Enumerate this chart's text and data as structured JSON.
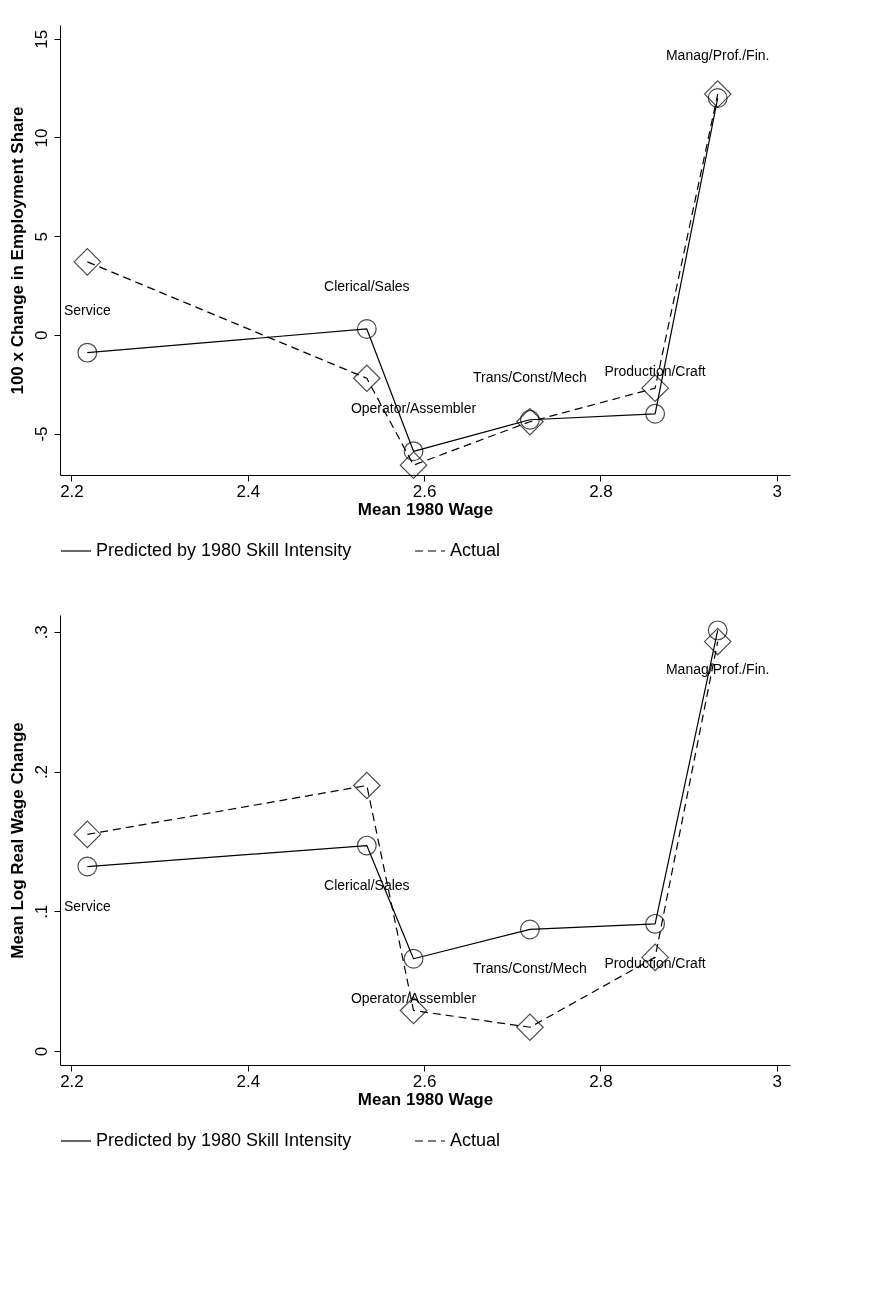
{
  "chart_data": [
    {
      "type": "line",
      "xlabel": "Mean 1980 Wage",
      "ylabel": "100 x Change in Employment Share",
      "x": [
        2.218,
        2.535,
        2.588,
        2.72,
        2.862,
        2.933
      ],
      "xlim": [
        2.187,
        3.015
      ],
      "xticks": [
        2.2,
        2.4,
        2.6,
        2.8,
        3
      ],
      "ylim": [
        -7.1,
        15.7
      ],
      "yticks": [
        -5,
        0,
        5,
        10,
        15
      ],
      "grid": false,
      "legend": "bottom",
      "series": [
        {
          "name": "Predicted by 1980 Skill Intensity",
          "color": "#000000",
          "marker": "circle",
          "line_style": "solid",
          "values": [
            -0.9,
            0.3,
            -5.9,
            -4.3,
            -4.0,
            12.0
          ]
        },
        {
          "name": "Actual",
          "color": "#000000",
          "marker": "diamond",
          "line_style": "dashed",
          "values": [
            3.7,
            -2.2,
            -6.6,
            -4.4,
            -2.7,
            12.2
          ]
        }
      ],
      "annotations": [
        {
          "text": "Service",
          "x": 2.218,
          "y": -0.9
        },
        {
          "text": "Clerical/Sales",
          "x": 2.535,
          "y": 0.3
        },
        {
          "text": "Operator/Assembler",
          "x": 2.588,
          "y": -5.9
        },
        {
          "text": "Trans/Const/Mech",
          "x": 2.72,
          "y": -4.3
        },
        {
          "text": "Production/Craft",
          "x": 2.862,
          "y": -4.0
        },
        {
          "text": "Manag/Prof./Fin.",
          "x": 2.933,
          "y": 12.0
        }
      ]
    },
    {
      "type": "line",
      "xlabel": "Mean 1980 Wage",
      "ylabel": "Mean Log Real Wage Change",
      "x": [
        2.218,
        2.535,
        2.588,
        2.72,
        2.862,
        2.933
      ],
      "xlim": [
        2.187,
        3.015
      ],
      "xticks": [
        2.2,
        2.4,
        2.6,
        2.8,
        3
      ],
      "ylim": [
        -0.01,
        0.312
      ],
      "yticks": [
        0,
        {
          "value": 0.1,
          "label": ".1"
        },
        {
          "value": 0.2,
          "label": ".2"
        },
        {
          "value": 0.3,
          "label": ".3"
        }
      ],
      "grid": false,
      "legend": "bottom",
      "series": [
        {
          "name": "Predicted by 1980 Skill Intensity",
          "color": "#000000",
          "marker": "circle",
          "line_style": "solid",
          "values": [
            0.132,
            0.147,
            0.066,
            0.087,
            0.091,
            0.301
          ]
        },
        {
          "name": "Actual",
          "color": "#000000",
          "marker": "diamond",
          "line_style": "dashed",
          "values": [
            0.155,
            0.19,
            0.029,
            0.017,
            0.067,
            0.293
          ]
        }
      ],
      "annotations": [
        {
          "text": "Service",
          "x": 2.218,
          "y": 0.132
        },
        {
          "text": "Clerical/Sales",
          "x": 2.535,
          "y": 0.147
        },
        {
          "text": "Operator/Assembler",
          "x": 2.588,
          "y": 0.066
        },
        {
          "text": "Trans/Const/Mech",
          "x": 2.72,
          "y": 0.087
        },
        {
          "text": "Production/Craft",
          "x": 2.862,
          "y": 0.091
        },
        {
          "text": "Manag/Prof./Fin.",
          "x": 2.933,
          "y": 0.301
        }
      ]
    }
  ]
}
